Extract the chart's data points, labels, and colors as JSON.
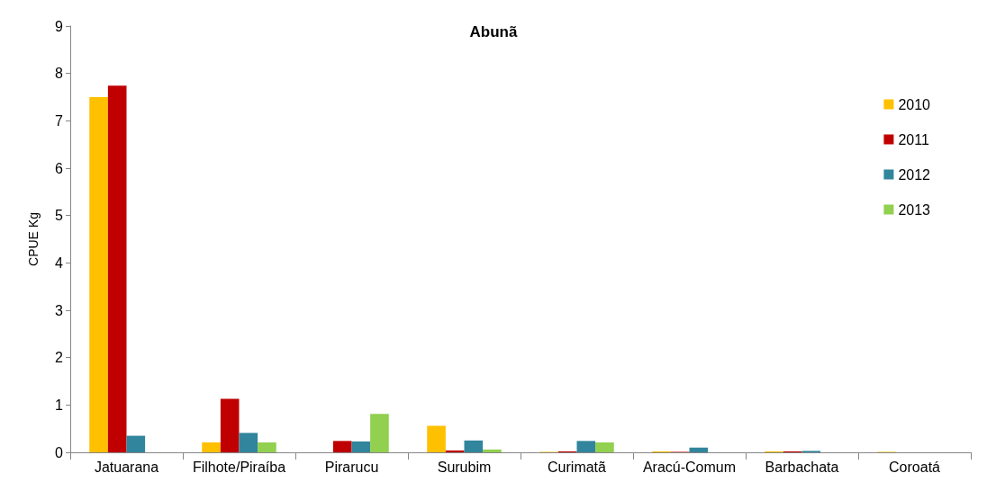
{
  "chart_data": {
    "type": "bar",
    "title": "Abunã",
    "ylabel": "CPUE Kg",
    "categories": [
      "Jatuarana",
      "Filhote/Piraíba",
      "Pirarucu",
      "Surubim",
      "Curimatã",
      "Aracú-Comum",
      "Barbachata",
      "Coroatá"
    ],
    "series": [
      {
        "name": "2010",
        "color": "#ffc000",
        "values": [
          7.5,
          0.21,
          0,
          0.56,
          0.01,
          0.02,
          0.02,
          0.01
        ]
      },
      {
        "name": "2011",
        "color": "#c00000",
        "values": [
          7.74,
          1.13,
          0.24,
          0.04,
          0.02,
          0.01,
          0.02,
          0
        ]
      },
      {
        "name": "2012",
        "color": "#31859c",
        "values": [
          0.35,
          0.41,
          0.23,
          0.25,
          0.24,
          0.1,
          0.03,
          0
        ]
      },
      {
        "name": "2013",
        "color": "#92d050",
        "values": [
          0,
          0.21,
          0.81,
          0.06,
          0.21,
          0,
          0,
          0
        ]
      }
    ],
    "ylim": [
      0,
      9
    ],
    "yticks": [
      0,
      1,
      2,
      3,
      4,
      5,
      6,
      7,
      8,
      9
    ],
    "grid": false,
    "legend": "top right"
  }
}
